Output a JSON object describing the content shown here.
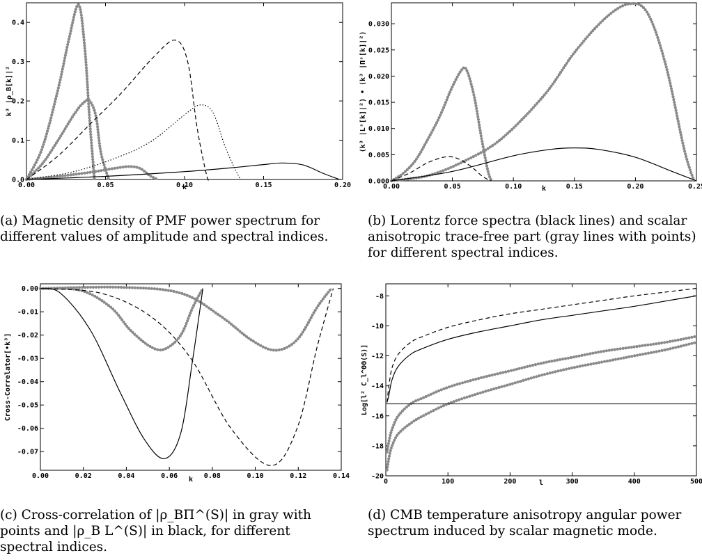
{
  "chart_data": [
    {
      "id": "a",
      "type": "line",
      "xlabel": "k",
      "ylabel": "k³ |ρ_B[k]|²",
      "xlim": [
        0,
        0.2
      ],
      "ylim": [
        0,
        0.45
      ],
      "xticks": [
        "0.00",
        "0.05",
        "0.10",
        "0.15",
        "0.20"
      ],
      "yticks": [
        "0.0",
        "0.1",
        "0.2",
        "0.3",
        "0.4"
      ],
      "grid": false,
      "series": [
        {
          "style": "gray-points",
          "x": [
            0,
            0.01,
            0.02,
            0.027,
            0.033,
            0.037,
            0.04,
            0.043
          ],
          "y": [
            0,
            0.08,
            0.23,
            0.36,
            0.445,
            0.33,
            0.15,
            0.0
          ]
        },
        {
          "style": "gray-points",
          "x": [
            0,
            0.01,
            0.02,
            0.03,
            0.036,
            0.04,
            0.044,
            0.047,
            0.052
          ],
          "y": [
            0,
            0.04,
            0.1,
            0.165,
            0.195,
            0.2,
            0.16,
            0.07,
            0.0
          ]
        },
        {
          "style": "gray-points",
          "x": [
            0,
            0.02,
            0.04,
            0.055,
            0.065,
            0.072,
            0.078,
            0.083
          ],
          "y": [
            0,
            0.008,
            0.018,
            0.028,
            0.033,
            0.028,
            0.01,
            0.0
          ]
        },
        {
          "style": "dashed",
          "x": [
            0,
            0.02,
            0.04,
            0.06,
            0.08,
            0.094,
            0.102,
            0.108,
            0.114,
            0.116
          ],
          "y": [
            0,
            0.06,
            0.14,
            0.22,
            0.31,
            0.355,
            0.3,
            0.13,
            0.01,
            0.0
          ]
        },
        {
          "style": "dotted",
          "x": [
            0,
            0.03,
            0.06,
            0.08,
            0.1,
            0.11,
            0.118,
            0.126,
            0.134,
            0.136
          ],
          "y": [
            0,
            0.02,
            0.06,
            0.1,
            0.165,
            0.19,
            0.17,
            0.08,
            0.01,
            0.0
          ]
        },
        {
          "style": "solid",
          "x": [
            0,
            0.05,
            0.1,
            0.13,
            0.15,
            0.162,
            0.175,
            0.188,
            0.198
          ],
          "y": [
            0,
            0.008,
            0.02,
            0.03,
            0.038,
            0.042,
            0.037,
            0.015,
            0.0
          ]
        }
      ],
      "caption": "(a) Magnetic density of PMF power spectrum for different values of amplitude and spectral indices."
    },
    {
      "id": "b",
      "type": "line",
      "xlabel": "k",
      "ylabel": "(k³ |Lˢ[k]|²) • (k³ |Πˢ[k]|²)",
      "xlim": [
        0,
        0.25
      ],
      "ylim": [
        0,
        0.034
      ],
      "xticks": [
        "0.00",
        "0.05",
        "0.10",
        "0.15",
        "0.20",
        "0.25"
      ],
      "yticks": [
        "0.000",
        "0.005",
        "0.010",
        "0.015",
        "0.020",
        "0.025",
        "0.030"
      ],
      "grid": false,
      "series": [
        {
          "style": "gray-points",
          "x": [
            0,
            0.01,
            0.02,
            0.03,
            0.04,
            0.05,
            0.058,
            0.062,
            0.068,
            0.074,
            0.079,
            0.082
          ],
          "y": [
            0,
            0.0015,
            0.004,
            0.008,
            0.0125,
            0.018,
            0.0213,
            0.021,
            0.016,
            0.008,
            0.002,
            0.0
          ]
        },
        {
          "style": "gray-points",
          "x": [
            0,
            0.03,
            0.06,
            0.09,
            0.125,
            0.15,
            0.175,
            0.195,
            0.21,
            0.225,
            0.24,
            0.248
          ],
          "y": [
            0,
            0.001,
            0.0038,
            0.008,
            0.0163,
            0.0245,
            0.031,
            0.0338,
            0.032,
            0.022,
            0.006,
            0.0
          ]
        },
        {
          "style": "dashed",
          "x": [
            0,
            0.015,
            0.03,
            0.045,
            0.055,
            0.065,
            0.075,
            0.082
          ],
          "y": [
            0,
            0.0015,
            0.0035,
            0.0046,
            0.0042,
            0.0028,
            0.0008,
            0.0
          ]
        },
        {
          "style": "solid",
          "x": [
            0,
            0.05,
            0.1,
            0.13,
            0.15,
            0.17,
            0.2,
            0.23,
            0.25
          ],
          "y": [
            0,
            0.0018,
            0.0048,
            0.006,
            0.0063,
            0.006,
            0.0045,
            0.0018,
            0.0
          ]
        }
      ],
      "caption": "(b) Lorentz force spectra (black lines) and scalar anisotropic trace-free part (gray lines with points) for different spectral indices."
    },
    {
      "id": "c",
      "type": "line",
      "xlabel": "k",
      "ylabel": "Cross-Correlator[•k³]",
      "xlim": [
        0,
        0.15
      ],
      "ylim": [
        -0.078,
        0.002
      ],
      "xticks": [
        "0.00",
        "0.02",
        "0.04",
        "0.06",
        "0.08",
        "0.10",
        "0.12",
        "0.14"
      ],
      "yticks": [
        "0.00",
        "-0.01",
        "-0.02",
        "-0.03",
        "-0.04",
        "-0.05",
        "-0.06",
        "-0.07"
      ],
      "grid": false,
      "series": [
        {
          "style": "gray-points",
          "x": [
            0,
            0.02,
            0.035,
            0.045,
            0.055,
            0.062,
            0.07,
            0.076,
            0.081
          ],
          "y": [
            0,
            -0.0008,
            -0.008,
            -0.018,
            -0.025,
            -0.026,
            -0.02,
            -0.008,
            0.0
          ]
        },
        {
          "style": "gray-points",
          "x": [
            0,
            0.04,
            0.07,
            0.09,
            0.105,
            0.117,
            0.128,
            0.138,
            0.145
          ],
          "y": [
            0,
            0.0005,
            -0.002,
            -0.012,
            -0.022,
            -0.0265,
            -0.022,
            -0.008,
            0.0
          ]
        },
        {
          "style": "solid",
          "x": [
            0,
            0.01,
            0.025,
            0.04,
            0.052,
            0.062,
            0.07,
            0.076,
            0.081
          ],
          "y": [
            0,
            -0.002,
            -0.018,
            -0.045,
            -0.065,
            -0.073,
            -0.062,
            -0.03,
            0.0
          ]
        },
        {
          "style": "dashed",
          "x": [
            0,
            0.03,
            0.055,
            0.075,
            0.095,
            0.115,
            0.128,
            0.138,
            0.146
          ],
          "y": [
            0,
            -0.002,
            -0.012,
            -0.03,
            -0.06,
            -0.076,
            -0.06,
            -0.025,
            0.0
          ]
        }
      ],
      "caption": "(c) Cross-correlation of |ρ_BΠ^(S)| in gray with points and |ρ_B L^(S)| in black, for different spectral indices."
    },
    {
      "id": "d",
      "type": "line",
      "xlabel": "l",
      "ylabel": "Log[l² C_l^ΘΘ(S)]",
      "xlim": [
        0,
        500
      ],
      "ylim": [
        -20,
        -7.2
      ],
      "xticks": [
        "0",
        "100",
        "200",
        "300",
        "400",
        "500"
      ],
      "yticks": [
        "-8",
        "-10",
        "-12",
        "-14",
        "-16",
        "-18",
        "-20"
      ],
      "grid": false,
      "series": [
        {
          "style": "dashed",
          "x": [
            2,
            5,
            10,
            20,
            40,
            60,
            100,
            150,
            200,
            250,
            300,
            350,
            400,
            450,
            500
          ],
          "y": [
            -15.1,
            -14.0,
            -12.8,
            -11.9,
            -11.1,
            -10.7,
            -10.1,
            -9.6,
            -9.2,
            -8.9,
            -8.6,
            -8.3,
            -8.0,
            -7.75,
            -7.5
          ]
        },
        {
          "style": "solid",
          "x": [
            2,
            5,
            10,
            20,
            40,
            60,
            100,
            150,
            200,
            250,
            300,
            350,
            400,
            450,
            500
          ],
          "y": [
            -15.1,
            -14.6,
            -13.6,
            -12.7,
            -11.9,
            -11.5,
            -10.9,
            -10.4,
            -10.0,
            -9.6,
            -9.3,
            -9.0,
            -8.7,
            -8.35,
            -8.0
          ]
        },
        {
          "style": "gray-points",
          "x": [
            2,
            5,
            10,
            20,
            40,
            60,
            100,
            150,
            200,
            250,
            300,
            350,
            400,
            450,
            500
          ],
          "y": [
            -18.4,
            -17.7,
            -16.9,
            -16.0,
            -15.2,
            -14.8,
            -14.1,
            -13.5,
            -13.0,
            -12.5,
            -12.1,
            -11.7,
            -11.4,
            -11.1,
            -10.7
          ]
        },
        {
          "style": "gray-points",
          "x": [
            2,
            5,
            10,
            20,
            40,
            60,
            100,
            150,
            200,
            250,
            300,
            350,
            400,
            450,
            500
          ],
          "y": [
            -19.6,
            -18.8,
            -18.0,
            -17.2,
            -16.5,
            -16.0,
            -15.2,
            -14.5,
            -13.9,
            -13.3,
            -12.8,
            -12.4,
            -12.0,
            -11.6,
            -11.1
          ]
        },
        {
          "style": "hline",
          "x": [
            0,
            500
          ],
          "y": [
            -15.2,
            -15.2
          ]
        }
      ],
      "caption": "(d) CMB temperature anisotropy angular power spectrum induced by scalar magnetic mode."
    }
  ]
}
